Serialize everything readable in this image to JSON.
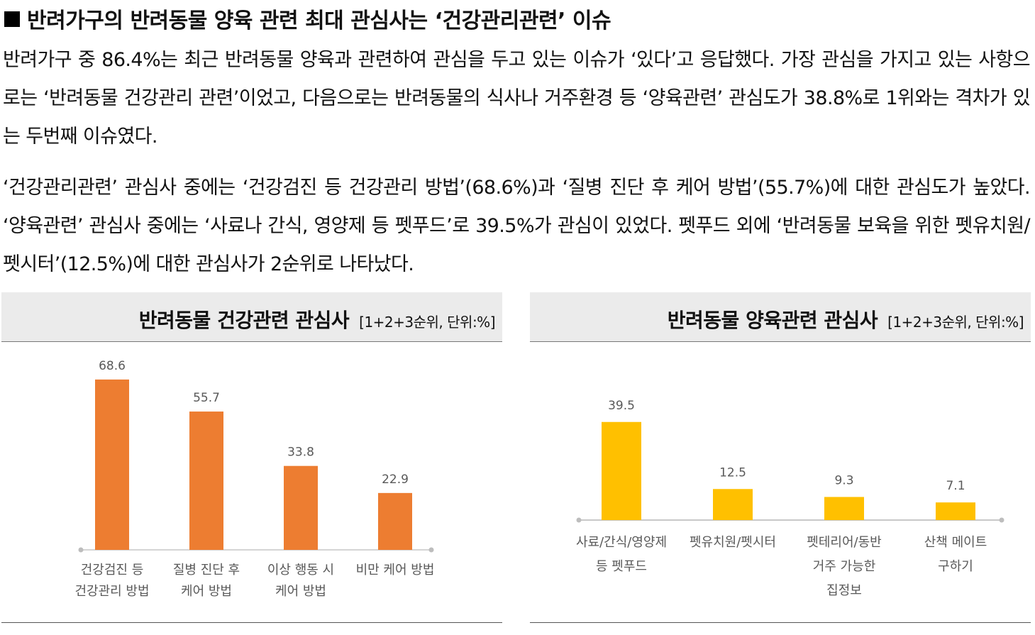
{
  "heading": "반려가구의 반려동물 양육 관련 최대 관심사는 ‘건강관리관련’ 이슈",
  "paragraphs": [
    "반려가구 중 86.4%는 최근 반려동물 양육과 관련하여 관심을 두고 있는 이슈가 ‘있다’고 응답했다. 가장 관심을 가지고 있는 사항으로는 ‘반려동물 건강관리 관련’이었고, 다음으로는 반려동물의 식사나 거주환경 등 ‘양육관련’ 관심도가 38.8%로 1위와는 격차가 있는 두번째 이슈였다.",
    "‘건강관리관련’ 관심사 중에는 ‘건강검진 등 건강관리 방법’(68.6%)과 ‘질병 진단 후 케어 방법’(55.7%)에 대한 관심도가 높았다. ‘양육관련’ 관심사 중에는 ‘사료나 간식, 영양제 등 펫푸드’로 39.5%가 관심이 있었다. 펫푸드 외에 ‘반려동물 보육을 위한 펫유치원/펫시터’(12.5%)에 대한 관심사가 2순위로 나타났다."
  ],
  "panels": {
    "left": {
      "title": "반려동물 건강관련 관심사",
      "unit": "[1+2+3순위, 단위:%]"
    },
    "right": {
      "title": "반려동물 양육관련 관심사",
      "unit": "[1+2+3순위, 단위:%]"
    }
  },
  "chart_data": [
    {
      "type": "bar",
      "title": "반려동물 건강관련 관심사",
      "unit": "%",
      "color": "#ED7D31",
      "categories": [
        [
          "건강검진 등",
          "건강관리 방법"
        ],
        [
          "질병 진단 후",
          "케어 방법"
        ],
        [
          "이상 행동 시",
          "케어 방법"
        ],
        [
          "비만 케어 방법"
        ]
      ],
      "values": [
        68.6,
        55.7,
        33.8,
        22.9
      ],
      "value_labels": [
        "68.6",
        "55.7",
        "33.8",
        "22.9"
      ],
      "ylim": [
        0,
        80
      ]
    },
    {
      "type": "bar",
      "title": "반려동물 양육관련 관심사",
      "unit": "%",
      "color": "#FFC000",
      "categories": [
        [
          "사료/간식/영양제",
          "등 펫푸드"
        ],
        [
          "펫유치원/펫시터"
        ],
        [
          "펫테리어/동반",
          "거주 가능한",
          "집정보"
        ],
        [
          "산책 메이트",
          "구하기"
        ]
      ],
      "values": [
        39.5,
        12.5,
        9.3,
        7.1
      ],
      "value_labels": [
        "39.5",
        "12.5",
        "9.3",
        "7.1"
      ],
      "ylim": [
        0,
        80
      ]
    }
  ]
}
